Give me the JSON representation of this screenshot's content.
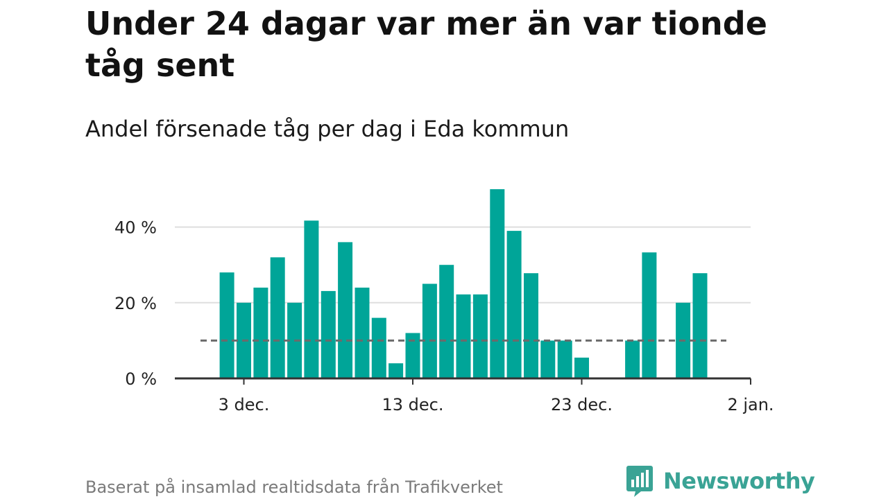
{
  "header": {
    "title": "Under 24 dagar var mer än var tionde tåg sent",
    "subtitle": "Andel försenade tåg per dag i Eda kommun"
  },
  "footer": {
    "source": "Baserat på insamlad realtidsdata från Trafikverket",
    "brand": "Newsworthy"
  },
  "colors": {
    "bar": "#00a598",
    "grid": "#dedede",
    "axis": "#333333",
    "reference_line": "#6b6b6b",
    "brand": "#3aa395"
  },
  "chart_data": {
    "type": "bar",
    "x_axis": {
      "type": "date",
      "start": "2019-12-01",
      "end": "2020-01-02",
      "ticks": [
        {
          "date": "2019-12-03",
          "label": "3 dec."
        },
        {
          "date": "2019-12-13",
          "label": "13 dec."
        },
        {
          "date": "2019-12-23",
          "label": "23 dec."
        },
        {
          "date": "2020-01-02",
          "label": "2 jan."
        }
      ]
    },
    "y_axis": {
      "min": 0,
      "max": 50,
      "ticks": [
        {
          "value": 0,
          "label": "0 %"
        },
        {
          "value": 20,
          "label": "20 %"
        },
        {
          "value": 40,
          "label": "40 %"
        }
      ],
      "grid": true
    },
    "reference_line": {
      "value": 10,
      "style": "dashed"
    },
    "series": [
      {
        "points": [
          {
            "date": "2019-12-02",
            "value": 28
          },
          {
            "date": "2019-12-03",
            "value": 20
          },
          {
            "date": "2019-12-04",
            "value": 24
          },
          {
            "date": "2019-12-05",
            "value": 32
          },
          {
            "date": "2019-12-06",
            "value": 20
          },
          {
            "date": "2019-12-07",
            "value": 41.7
          },
          {
            "date": "2019-12-08",
            "value": 23.1
          },
          {
            "date": "2019-12-09",
            "value": 36
          },
          {
            "date": "2019-12-10",
            "value": 24
          },
          {
            "date": "2019-12-11",
            "value": 16
          },
          {
            "date": "2019-12-12",
            "value": 4
          },
          {
            "date": "2019-12-13",
            "value": 12
          },
          {
            "date": "2019-12-14",
            "value": 25
          },
          {
            "date": "2019-12-15",
            "value": 30
          },
          {
            "date": "2019-12-16",
            "value": 22.2
          },
          {
            "date": "2019-12-17",
            "value": 22.2
          },
          {
            "date": "2019-12-18",
            "value": 50
          },
          {
            "date": "2019-12-19",
            "value": 39
          },
          {
            "date": "2019-12-20",
            "value": 27.8
          },
          {
            "date": "2019-12-21",
            "value": 10
          },
          {
            "date": "2019-12-22",
            "value": 10
          },
          {
            "date": "2019-12-23",
            "value": 5.5
          },
          {
            "date": "2019-12-26",
            "value": 10
          },
          {
            "date": "2019-12-27",
            "value": 33.3
          },
          {
            "date": "2019-12-29",
            "value": 20
          },
          {
            "date": "2019-12-30",
            "value": 27.8
          }
        ]
      }
    ]
  }
}
